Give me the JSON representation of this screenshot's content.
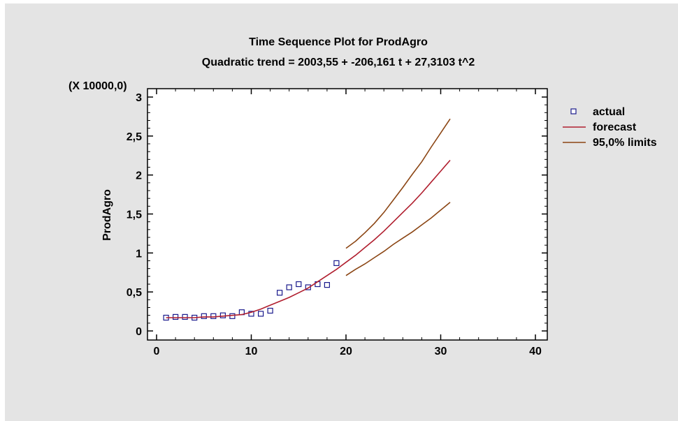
{
  "chart_data": {
    "type": "line",
    "title": "Time Sequence Plot for ProdAgro",
    "subtitle": "Quadratic trend = 2003,55 + -206,161 t  + 27,3103 t^2",
    "ylabel": "ProdAgro",
    "y_multiplier": "(X 10000,0)",
    "xlim": [
      0,
      40
    ],
    "ylim": [
      0,
      3
    ],
    "x_ticks": [
      0,
      10,
      20,
      30,
      40
    ],
    "x_tick_labels": [
      "0",
      "10",
      "20",
      "30",
      "40"
    ],
    "y_ticks": [
      0,
      0.5,
      1,
      1.5,
      2,
      2.5,
      3
    ],
    "y_tick_labels": [
      "0",
      "0,5",
      "1",
      "1,5",
      "2",
      "2,5",
      "3"
    ],
    "grid": false,
    "legend_position": "right",
    "series": [
      {
        "name": "actual",
        "style": "markers",
        "color": "#1a1a8c",
        "x": [
          1,
          2,
          3,
          4,
          5,
          6,
          7,
          8,
          9,
          10,
          11,
          12,
          13,
          14,
          15,
          16,
          17,
          18,
          19
        ],
        "y": [
          0.17,
          0.18,
          0.18,
          0.17,
          0.19,
          0.19,
          0.2,
          0.19,
          0.24,
          0.22,
          0.22,
          0.26,
          0.49,
          0.56,
          0.6,
          0.56,
          0.6,
          0.59,
          0.87
        ]
      },
      {
        "name": "forecast",
        "style": "line",
        "color": "#b01e2e",
        "x": [
          1,
          2,
          3,
          4,
          5,
          6,
          7,
          8,
          9,
          10,
          11,
          12,
          13,
          14,
          15,
          16,
          17,
          18,
          19,
          20,
          21,
          22,
          23,
          24,
          25,
          26,
          27,
          28,
          29,
          30,
          31
        ],
        "y": [
          0.17,
          0.17,
          0.17,
          0.17,
          0.18,
          0.18,
          0.19,
          0.2,
          0.21,
          0.24,
          0.28,
          0.33,
          0.38,
          0.43,
          0.49,
          0.55,
          0.63,
          0.71,
          0.79,
          0.88,
          0.97,
          1.07,
          1.17,
          1.28,
          1.4,
          1.52,
          1.64,
          1.77,
          1.91,
          2.05,
          2.19
        ]
      },
      {
        "name": "95,0% limits",
        "style": "line",
        "color": "#8b4513",
        "x": [
          20,
          21,
          22,
          23,
          24,
          25,
          26,
          27,
          28,
          29,
          30,
          31
        ],
        "y": [
          1.06,
          1.15,
          1.26,
          1.38,
          1.52,
          1.68,
          1.84,
          2.01,
          2.17,
          2.36,
          2.54,
          2.72
        ]
      },
      {
        "name": "",
        "style": "line",
        "color": "#8b4513",
        "x": [
          20,
          21,
          22,
          23,
          24,
          25,
          26,
          27,
          28,
          29,
          30,
          31
        ],
        "y": [
          0.71,
          0.79,
          0.86,
          0.94,
          1.02,
          1.11,
          1.19,
          1.27,
          1.36,
          1.45,
          1.55,
          1.65
        ]
      }
    ]
  }
}
